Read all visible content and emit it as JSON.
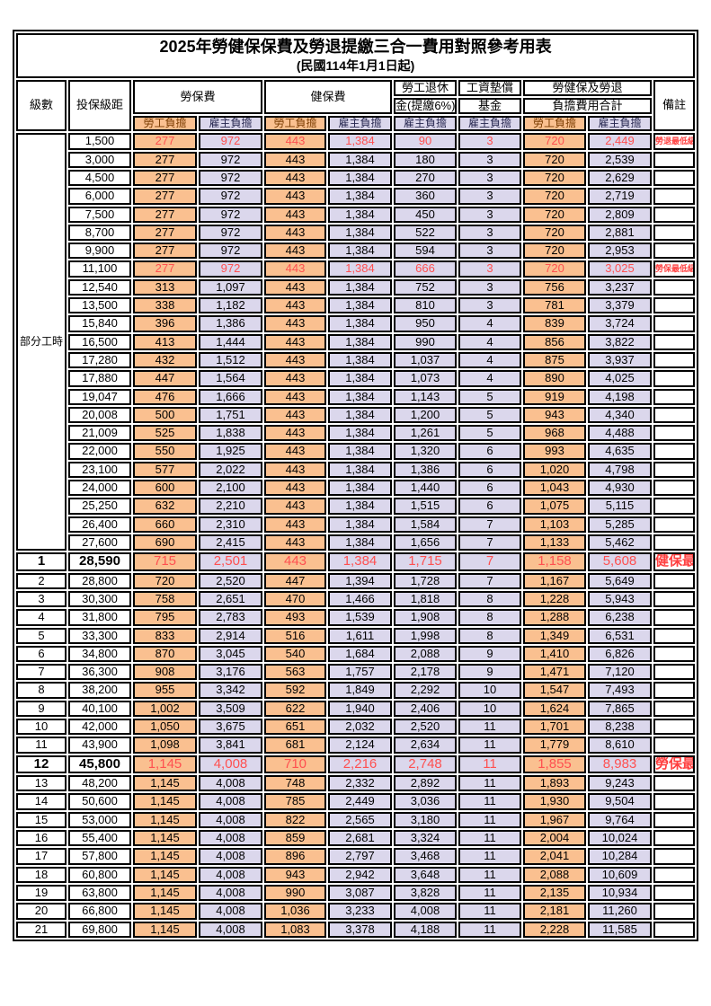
{
  "title": "2025年勞健保保費及勞退提繳三合一費用對照參考用表",
  "subtitle": "(民國114年1月1日起)",
  "colors": {
    "employee_bg": "#FAC090",
    "employer_bg": "#DBD7EC",
    "employee_header_text": "#7B3C00",
    "employer_header_text": "#26264F",
    "highlight_text": "#FF5050",
    "note_text": "#FF4040"
  },
  "header": {
    "level": "級數",
    "bracket": "投保級距",
    "labor_ins": "勞保費",
    "health_ins": "健保費",
    "pension_line1": "勞工退休",
    "pension_line2": "金(提繳6%)",
    "wage_fund_line1": "工資墊償",
    "wage_fund_line2": "基金",
    "total_line1": "勞健保及勞退",
    "total_line2": "負擔費用合計",
    "note": "備註",
    "employee": "勞工負擔",
    "employer": "雇主負擔"
  },
  "part_time_label": "部分工時",
  "part_time_rowspan": 23,
  "rows": [
    {
      "level": "",
      "bracket": "1,500",
      "v": [
        "277",
        "972",
        "443",
        "1,384",
        "90",
        "3",
        "720",
        "2,449"
      ],
      "note": "勞退最低級距",
      "hl": "red"
    },
    {
      "level": "",
      "bracket": "3,000",
      "v": [
        "277",
        "972",
        "443",
        "1,384",
        "180",
        "3",
        "720",
        "2,539"
      ],
      "note": "",
      "hl": ""
    },
    {
      "level": "",
      "bracket": "4,500",
      "v": [
        "277",
        "972",
        "443",
        "1,384",
        "270",
        "3",
        "720",
        "2,629"
      ],
      "note": "",
      "hl": ""
    },
    {
      "level": "",
      "bracket": "6,000",
      "v": [
        "277",
        "972",
        "443",
        "1,384",
        "360",
        "3",
        "720",
        "2,719"
      ],
      "note": "",
      "hl": ""
    },
    {
      "level": "",
      "bracket": "7,500",
      "v": [
        "277",
        "972",
        "443",
        "1,384",
        "450",
        "3",
        "720",
        "2,809"
      ],
      "note": "",
      "hl": ""
    },
    {
      "level": "",
      "bracket": "8,700",
      "v": [
        "277",
        "972",
        "443",
        "1,384",
        "522",
        "3",
        "720",
        "2,881"
      ],
      "note": "",
      "hl": ""
    },
    {
      "level": "",
      "bracket": "9,900",
      "v": [
        "277",
        "972",
        "443",
        "1,384",
        "594",
        "3",
        "720",
        "2,953"
      ],
      "note": "",
      "hl": ""
    },
    {
      "level": "",
      "bracket": "11,100",
      "v": [
        "277",
        "972",
        "443",
        "1,384",
        "666",
        "3",
        "720",
        "3,025"
      ],
      "note": "勞保最低級距",
      "hl": "red"
    },
    {
      "level": "",
      "bracket": "12,540",
      "v": [
        "313",
        "1,097",
        "443",
        "1,384",
        "752",
        "3",
        "756",
        "3,237"
      ],
      "note": "",
      "hl": ""
    },
    {
      "level": "",
      "bracket": "13,500",
      "v": [
        "338",
        "1,182",
        "443",
        "1,384",
        "810",
        "3",
        "781",
        "3,379"
      ],
      "note": "",
      "hl": ""
    },
    {
      "level": "",
      "bracket": "15,840",
      "v": [
        "396",
        "1,386",
        "443",
        "1,384",
        "950",
        "4",
        "839",
        "3,724"
      ],
      "note": "",
      "hl": ""
    },
    {
      "level": "",
      "bracket": "16,500",
      "v": [
        "413",
        "1,444",
        "443",
        "1,384",
        "990",
        "4",
        "856",
        "3,822"
      ],
      "note": "",
      "hl": ""
    },
    {
      "level": "",
      "bracket": "17,280",
      "v": [
        "432",
        "1,512",
        "443",
        "1,384",
        "1,037",
        "4",
        "875",
        "3,937"
      ],
      "note": "",
      "hl": ""
    },
    {
      "level": "",
      "bracket": "17,880",
      "v": [
        "447",
        "1,564",
        "443",
        "1,384",
        "1,073",
        "4",
        "890",
        "4,025"
      ],
      "note": "",
      "hl": ""
    },
    {
      "level": "",
      "bracket": "19,047",
      "v": [
        "476",
        "1,666",
        "443",
        "1,384",
        "1,143",
        "5",
        "919",
        "4,198"
      ],
      "note": "",
      "hl": ""
    },
    {
      "level": "",
      "bracket": "20,008",
      "v": [
        "500",
        "1,751",
        "443",
        "1,384",
        "1,200",
        "5",
        "943",
        "4,340"
      ],
      "note": "",
      "hl": ""
    },
    {
      "level": "",
      "bracket": "21,009",
      "v": [
        "525",
        "1,838",
        "443",
        "1,384",
        "1,261",
        "5",
        "968",
        "4,488"
      ],
      "note": "",
      "hl": ""
    },
    {
      "level": "",
      "bracket": "22,000",
      "v": [
        "550",
        "1,925",
        "443",
        "1,384",
        "1,320",
        "6",
        "993",
        "4,635"
      ],
      "note": "",
      "hl": ""
    },
    {
      "level": "",
      "bracket": "23,100",
      "v": [
        "577",
        "2,022",
        "443",
        "1,384",
        "1,386",
        "6",
        "1,020",
        "4,798"
      ],
      "note": "",
      "hl": ""
    },
    {
      "level": "",
      "bracket": "24,000",
      "v": [
        "600",
        "2,100",
        "443",
        "1,384",
        "1,440",
        "6",
        "1,043",
        "4,930"
      ],
      "note": "",
      "hl": ""
    },
    {
      "level": "",
      "bracket": "25,250",
      "v": [
        "632",
        "2,210",
        "443",
        "1,384",
        "1,515",
        "6",
        "1,075",
        "5,115"
      ],
      "note": "",
      "hl": ""
    },
    {
      "level": "",
      "bracket": "26,400",
      "v": [
        "660",
        "2,310",
        "443",
        "1,384",
        "1,584",
        "7",
        "1,103",
        "5,285"
      ],
      "note": "",
      "hl": ""
    },
    {
      "level": "",
      "bracket": "27,600",
      "v": [
        "690",
        "2,415",
        "443",
        "1,384",
        "1,656",
        "7",
        "1,133",
        "5,462"
      ],
      "note": "",
      "hl": ""
    },
    {
      "level": "1",
      "bracket": "28,590",
      "v": [
        "715",
        "2,501",
        "443",
        "1,384",
        "1,715",
        "7",
        "1,158",
        "5,608"
      ],
      "note": "健保最低級距",
      "hl": "red-big"
    },
    {
      "level": "2",
      "bracket": "28,800",
      "v": [
        "720",
        "2,520",
        "447",
        "1,394",
        "1,728",
        "7",
        "1,167",
        "5,649"
      ],
      "note": "",
      "hl": ""
    },
    {
      "level": "3",
      "bracket": "30,300",
      "v": [
        "758",
        "2,651",
        "470",
        "1,466",
        "1,818",
        "8",
        "1,228",
        "5,943"
      ],
      "note": "",
      "hl": ""
    },
    {
      "level": "4",
      "bracket": "31,800",
      "v": [
        "795",
        "2,783",
        "493",
        "1,539",
        "1,908",
        "8",
        "1,288",
        "6,238"
      ],
      "note": "",
      "hl": ""
    },
    {
      "level": "5",
      "bracket": "33,300",
      "v": [
        "833",
        "2,914",
        "516",
        "1,611",
        "1,998",
        "8",
        "1,349",
        "6,531"
      ],
      "note": "",
      "hl": ""
    },
    {
      "level": "6",
      "bracket": "34,800",
      "v": [
        "870",
        "3,045",
        "540",
        "1,684",
        "2,088",
        "9",
        "1,410",
        "6,826"
      ],
      "note": "",
      "hl": ""
    },
    {
      "level": "7",
      "bracket": "36,300",
      "v": [
        "908",
        "3,176",
        "563",
        "1,757",
        "2,178",
        "9",
        "1,471",
        "7,120"
      ],
      "note": "",
      "hl": ""
    },
    {
      "level": "8",
      "bracket": "38,200",
      "v": [
        "955",
        "3,342",
        "592",
        "1,849",
        "2,292",
        "10",
        "1,547",
        "7,493"
      ],
      "note": "",
      "hl": ""
    },
    {
      "level": "9",
      "bracket": "40,100",
      "v": [
        "1,002",
        "3,509",
        "622",
        "1,940",
        "2,406",
        "10",
        "1,624",
        "7,865"
      ],
      "note": "",
      "hl": ""
    },
    {
      "level": "10",
      "bracket": "42,000",
      "v": [
        "1,050",
        "3,675",
        "651",
        "2,032",
        "2,520",
        "11",
        "1,701",
        "8,238"
      ],
      "note": "",
      "hl": ""
    },
    {
      "level": "11",
      "bracket": "43,900",
      "v": [
        "1,098",
        "3,841",
        "681",
        "2,124",
        "2,634",
        "11",
        "1,779",
        "8,610"
      ],
      "note": "",
      "hl": ""
    },
    {
      "level": "12",
      "bracket": "45,800",
      "v": [
        "1,145",
        "4,008",
        "710",
        "2,216",
        "2,748",
        "11",
        "1,855",
        "8,983"
      ],
      "note": "勞保最高級距",
      "hl": "red-big"
    },
    {
      "level": "13",
      "bracket": "48,200",
      "v": [
        "1,145",
        "4,008",
        "748",
        "2,332",
        "2,892",
        "11",
        "1,893",
        "9,243"
      ],
      "note": "",
      "hl": ""
    },
    {
      "level": "14",
      "bracket": "50,600",
      "v": [
        "1,145",
        "4,008",
        "785",
        "2,449",
        "3,036",
        "11",
        "1,930",
        "9,504"
      ],
      "note": "",
      "hl": ""
    },
    {
      "level": "15",
      "bracket": "53,000",
      "v": [
        "1,145",
        "4,008",
        "822",
        "2,565",
        "3,180",
        "11",
        "1,967",
        "9,764"
      ],
      "note": "",
      "hl": ""
    },
    {
      "level": "16",
      "bracket": "55,400",
      "v": [
        "1,145",
        "4,008",
        "859",
        "2,681",
        "3,324",
        "11",
        "2,004",
        "10,024"
      ],
      "note": "",
      "hl": ""
    },
    {
      "level": "17",
      "bracket": "57,800",
      "v": [
        "1,145",
        "4,008",
        "896",
        "2,797",
        "3,468",
        "11",
        "2,041",
        "10,284"
      ],
      "note": "",
      "hl": ""
    },
    {
      "level": "18",
      "bracket": "60,800",
      "v": [
        "1,145",
        "4,008",
        "943",
        "2,942",
        "3,648",
        "11",
        "2,088",
        "10,609"
      ],
      "note": "",
      "hl": ""
    },
    {
      "level": "19",
      "bracket": "63,800",
      "v": [
        "1,145",
        "4,008",
        "990",
        "3,087",
        "3,828",
        "11",
        "2,135",
        "10,934"
      ],
      "note": "",
      "hl": ""
    },
    {
      "level": "20",
      "bracket": "66,800",
      "v": [
        "1,145",
        "4,008",
        "1,036",
        "3,233",
        "4,008",
        "11",
        "2,181",
        "11,260"
      ],
      "note": "",
      "hl": ""
    },
    {
      "level": "21",
      "bracket": "69,800",
      "v": [
        "1,145",
        "4,008",
        "1,083",
        "3,378",
        "4,188",
        "11",
        "2,228",
        "11,585"
      ],
      "note": "",
      "hl": ""
    }
  ]
}
